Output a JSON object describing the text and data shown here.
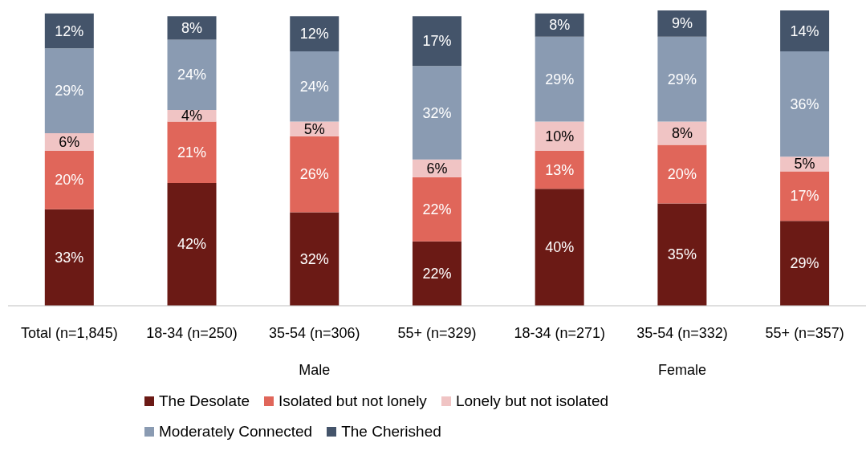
{
  "chart_data": {
    "type": "bar",
    "stacked": true,
    "data_labels": true,
    "legend": "bottom",
    "grid": false,
    "categories": [
      "Total (n=1,845)",
      "18-34 (n=250)",
      "35-54 (n=306)",
      "55+ (n=329)",
      "18-34 (n=271)",
      "35-54 (n=332)",
      "55+ (n=357)"
    ],
    "annotations": [
      "Male",
      "Female"
    ],
    "series": [
      {
        "name": "The Desolate",
        "color": "#6b1a15",
        "values": [
          33,
          42,
          32,
          22,
          40,
          35,
          29
        ],
        "value_labels": [
          "33%",
          "42%",
          "32%",
          "22%",
          "40%",
          "35%",
          "29%"
        ]
      },
      {
        "name": "Isolated but not lonely",
        "color": "#e0665a",
        "values": [
          20,
          21,
          26,
          22,
          13,
          20,
          17
        ],
        "value_labels": [
          "20%",
          "21%",
          "26%",
          "22%",
          "13%",
          "20%",
          "17%"
        ]
      },
      {
        "name": "Lonely but not isolated",
        "color": "#f0c4c4",
        "values": [
          6,
          4,
          5,
          6,
          10,
          8,
          5
        ],
        "value_labels": [
          "6%",
          "4%",
          "5%",
          "6%",
          "10%",
          "8%",
          "5%"
        ]
      },
      {
        "name": "Moderately Connected",
        "color": "#8a9bb2",
        "values": [
          29,
          24,
          24,
          32,
          29,
          29,
          36
        ],
        "value_labels": [
          "29%",
          "24%",
          "24%",
          "32%",
          "29%",
          "29%",
          "36%"
        ]
      },
      {
        "name": "The Cherished",
        "color": "#44546a",
        "values": [
          12,
          8,
          12,
          17,
          8,
          9,
          14
        ],
        "value_labels": [
          "12%",
          "8%",
          "12%",
          "17%",
          "8%",
          "9%",
          "14%"
        ]
      }
    ]
  }
}
